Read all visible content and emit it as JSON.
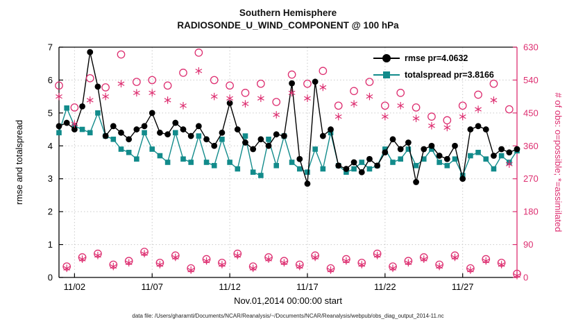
{
  "title": {
    "line1": "Southern Hemisphere",
    "line2": "RADIOSONDE_U_WIND_COMPONENT @ 100 hPa"
  },
  "footer_text": "data file: /Users/gharamti/Documents/NCAR/Reanalysis/~/Documents/NCAR/Reanalysis/webpub/obs_diag_output_2014-11.nc",
  "colors": {
    "rmse": "#000000",
    "totalspread": "#128b8b",
    "obs": "#dd2e70",
    "grid": "#c9c9c9",
    "axis": "#000000"
  },
  "legend": {
    "rmse_label": "rmse pr=4.0632",
    "totalspread_label": "totalspread pr=3.8166"
  },
  "chart_data": {
    "type": "line",
    "title": "Southern Hemisphere  RADIOSONDE_U_WIND_COMPONENT @ 100 hPa",
    "xlabel": "Nov.01,2014 00:00:00 start",
    "ylabel_left": "rmse and totalspread",
    "ylabel_right": "# of obs: o=possible; *=assimilated",
    "x_tick_labels": [
      "11/02",
      "11/07",
      "11/12",
      "11/17",
      "11/22",
      "11/27"
    ],
    "x_tick_positions": [
      2,
      12,
      22,
      32,
      42,
      52
    ],
    "ylim_left": [
      0,
      7
    ],
    "yticks_left": [
      0,
      1,
      2,
      3,
      4,
      5,
      6,
      7
    ],
    "ylim_right": [
      0,
      630
    ],
    "yticks_right": [
      0,
      90,
      180,
      270,
      360,
      450,
      540,
      630
    ],
    "grid": "dotted",
    "legend_position": "upper-right-inside",
    "n_points": 60,
    "series": [
      {
        "name": "rmse",
        "axis": "left",
        "marker": "circle",
        "summary_value": 4.0632,
        "values": [
          4.6,
          4.7,
          4.5,
          5.2,
          6.85,
          5.8,
          4.3,
          4.6,
          4.4,
          4.2,
          4.5,
          4.6,
          5.0,
          4.4,
          4.35,
          4.7,
          4.5,
          4.3,
          4.6,
          4.2,
          4.0,
          4.4,
          5.3,
          4.5,
          4.1,
          3.9,
          4.2,
          4.0,
          4.35,
          4.3,
          5.9,
          3.6,
          2.85,
          5.95,
          4.3,
          4.5,
          3.4,
          3.3,
          3.5,
          3.2,
          3.6,
          3.4,
          3.8,
          4.2,
          3.9,
          4.1,
          2.9,
          3.9,
          4.0,
          3.7,
          3.6,
          4.0,
          3.0,
          4.5,
          4.6,
          4.5,
          3.7,
          3.9,
          3.8,
          3.9
        ]
      },
      {
        "name": "totalspread",
        "axis": "left",
        "marker": "square",
        "summary_value": 3.8166,
        "values": [
          4.4,
          5.15,
          4.6,
          4.5,
          4.4,
          5.0,
          4.3,
          4.2,
          3.9,
          3.8,
          3.6,
          4.4,
          3.9,
          3.7,
          3.5,
          4.4,
          3.6,
          3.5,
          4.3,
          3.5,
          3.4,
          4.2,
          3.5,
          3.3,
          4.3,
          3.2,
          3.1,
          4.2,
          3.4,
          4.3,
          3.5,
          3.3,
          3.2,
          3.9,
          3.3,
          4.4,
          3.4,
          3.2,
          3.3,
          3.5,
          3.3,
          3.4,
          3.9,
          3.5,
          3.6,
          3.9,
          3.4,
          3.6,
          3.9,
          3.5,
          3.4,
          3.6,
          3.1,
          3.7,
          3.8,
          3.6,
          3.3,
          3.7,
          3.5,
          3.85
        ]
      },
      {
        "name": "obs_possible",
        "axis": "right",
        "marker": "open-circle",
        "values": [
          525,
          30,
          465,
          55,
          545,
          65,
          520,
          35,
          610,
          45,
          535,
          70,
          540,
          40,
          525,
          60,
          560,
          25,
          615,
          50,
          540,
          40,
          525,
          65,
          505,
          30,
          530,
          55,
          480,
          45,
          555,
          35,
          530,
          60,
          565,
          25,
          470,
          50,
          510,
          40,
          535,
          65,
          470,
          30,
          505,
          45,
          465,
          55,
          440,
          35,
          430,
          60,
          470,
          25,
          500,
          50,
          530,
          40,
          460,
          10
        ]
      },
      {
        "name": "obs_assimilated",
        "axis": "right",
        "marker": "asterisk",
        "values": [
          495,
          25,
          420,
          50,
          485,
          60,
          495,
          30,
          530,
          40,
          505,
          65,
          505,
          35,
          485,
          55,
          470,
          20,
          565,
          45,
          495,
          35,
          490,
          60,
          475,
          25,
          490,
          50,
          445,
          40,
          505,
          30,
          490,
          55,
          520,
          20,
          440,
          45,
          475,
          35,
          495,
          60,
          440,
          25,
          470,
          40,
          435,
          50,
          415,
          30,
          410,
          55,
          440,
          20,
          460,
          45,
          485,
          35,
          310,
          5
        ]
      }
    ]
  }
}
